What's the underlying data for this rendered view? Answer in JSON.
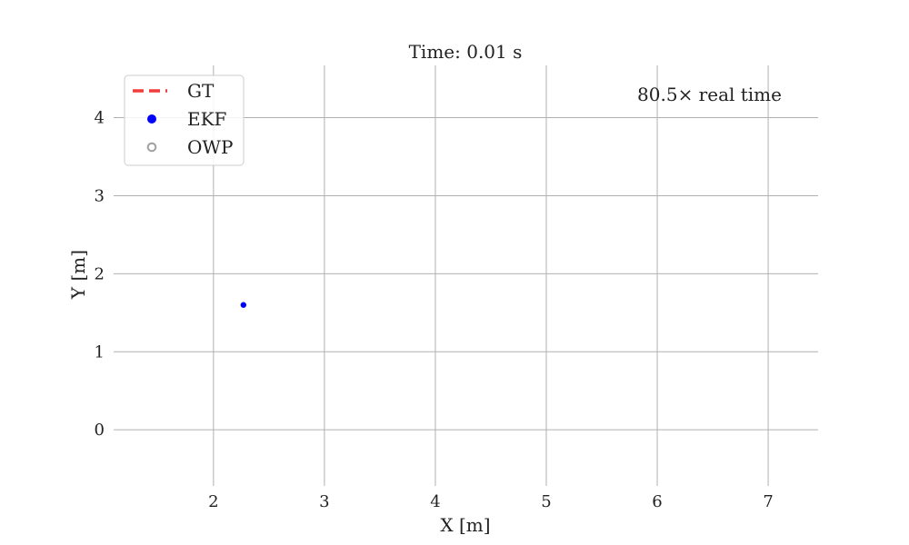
{
  "chart_data": {
    "type": "scatter",
    "title": "Time: 0.01 s",
    "xlabel": "X [m]",
    "ylabel": "Y [m]",
    "xlim": [
      1.1,
      7.45
    ],
    "ylim": [
      -0.72,
      4.67
    ],
    "xticks": [
      "2",
      "3",
      "4",
      "5",
      "6",
      "7"
    ],
    "yticks": [
      "0",
      "1",
      "2",
      "3",
      "4"
    ],
    "grid": true,
    "legend_position": "top-left",
    "annotation": "80.5× real time",
    "series": [
      {
        "name": "GT",
        "style": "dashed-line",
        "color": "#f03c3c",
        "x": [],
        "y": []
      },
      {
        "name": "EKF",
        "style": "filled-marker",
        "color": "#0000ff",
        "x": [
          2.27
        ],
        "y": [
          1.6
        ]
      },
      {
        "name": "OWP",
        "style": "hollow-marker",
        "color": "#a0a0a0",
        "x": [],
        "y": []
      }
    ]
  }
}
